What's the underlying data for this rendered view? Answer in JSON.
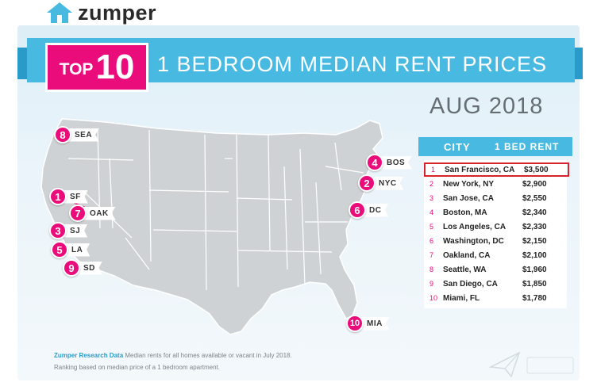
{
  "logo": {
    "text": "zumper",
    "icon": "house-icon"
  },
  "banner": {
    "top_word": "TOP",
    "number": "10",
    "title": "1 BEDROOM MEDIAN RENT PRICES"
  },
  "date_label": "AUG 2018",
  "table": {
    "header_city": "CITY",
    "header_rent": "1 BED RENT",
    "rows": [
      {
        "rank": "1",
        "city": "San Francisco, CA",
        "rent": "$3,500"
      },
      {
        "rank": "2",
        "city": "New York, NY",
        "rent": "$2,900"
      },
      {
        "rank": "3",
        "city": "San Jose, CA",
        "rent": "$2,550"
      },
      {
        "rank": "4",
        "city": "Boston, MA",
        "rent": "$2,340"
      },
      {
        "rank": "5",
        "city": "Los Angeles, CA",
        "rent": "$2,330"
      },
      {
        "rank": "6",
        "city": "Washington, DC",
        "rent": "$2,150"
      },
      {
        "rank": "7",
        "city": "Oakland, CA",
        "rent": "$2,100"
      },
      {
        "rank": "8",
        "city": "Seattle, WA",
        "rent": "$1,960"
      },
      {
        "rank": "9",
        "city": "San Diego, CA",
        "rent": "$1,850"
      },
      {
        "rank": "10",
        "city": "Miami, FL",
        "rent": "$1,780"
      }
    ]
  },
  "pins": [
    {
      "num": "8",
      "label": "SEA"
    },
    {
      "num": "1",
      "label": "SF"
    },
    {
      "num": "7",
      "label": "OAK"
    },
    {
      "num": "3",
      "label": "SJ"
    },
    {
      "num": "5",
      "label": "LA"
    },
    {
      "num": "9",
      "label": "SD"
    },
    {
      "num": "4",
      "label": "BOS"
    },
    {
      "num": "2",
      "label": "NYC"
    },
    {
      "num": "6",
      "label": "DC"
    },
    {
      "num": "10",
      "label": "MIA"
    }
  ],
  "footnote": {
    "source": "Zumper Research Data",
    "line1": " Median rents for all homes available or vacant in July 2018.",
    "line2": "Ranking based on median price of a 1 bedroom apartment."
  },
  "colors": {
    "accent_pink": "#ea0c7a",
    "ribbon_blue": "#48b9e0",
    "ribbon_dark_blue": "#2a9bc9",
    "map_gray": "#cfd2d4",
    "highlight_red": "#d8232a"
  }
}
